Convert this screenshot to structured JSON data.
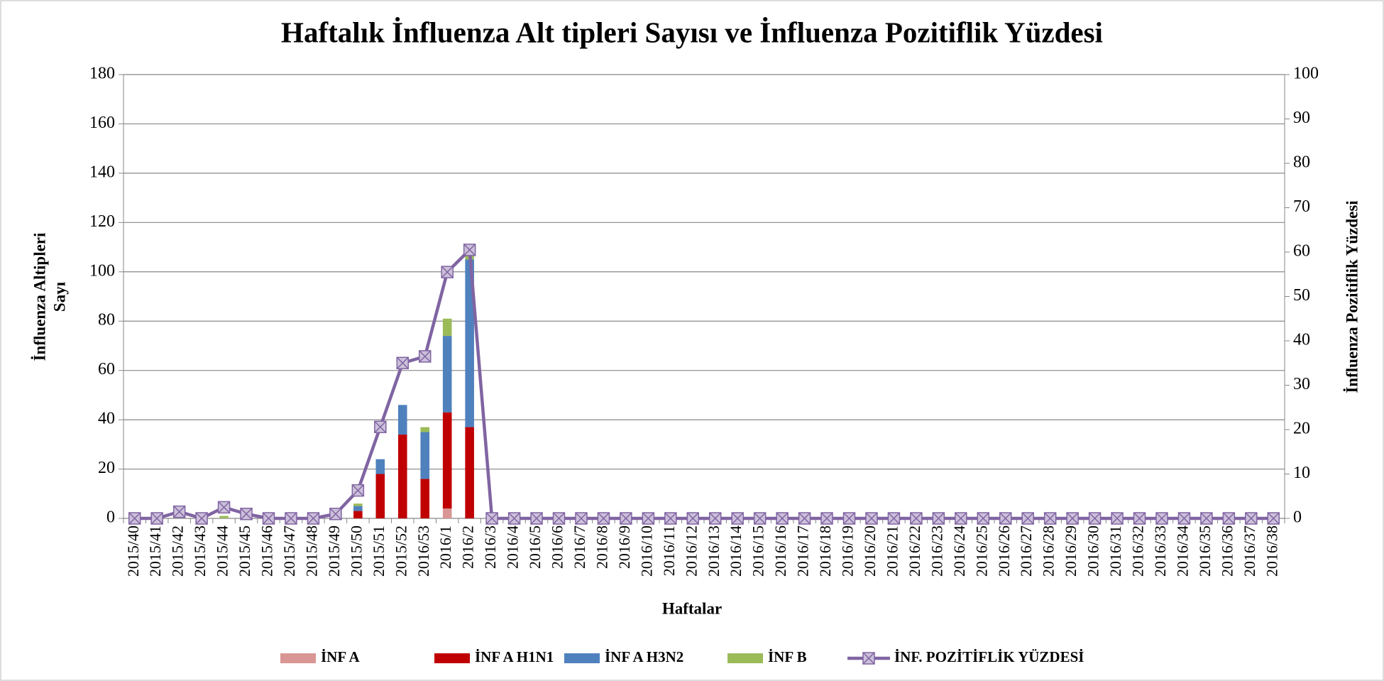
{
  "chart_data": {
    "type": "bar_line",
    "title": "Haftalık İnfluenza Alt tipleri Sayısı ve İnfluenza Pozitiflik Yüzdesi",
    "ylabel": [
      "İnfluenza Altipleri",
      "Sayı"
    ],
    "y2label": "İnfluenza Pozitiflik Yüzdesi",
    "xlabel": "Haftalar",
    "categories": [
      "2015/40",
      "2015/41",
      "2015/42",
      "2015/43",
      "2015/44",
      "2015/45",
      "2015/46",
      "2015/47",
      "2015/48",
      "2015/49",
      "2015/50",
      "2015/51",
      "2015/52",
      "2016/53",
      "2016/1",
      "2016/2",
      "2016/3",
      "2016/4",
      "2016/5",
      "2016/6",
      "2016/7",
      "2016/8",
      "2016/9",
      "2016/10",
      "2016/11",
      "2016/12",
      "2016/13",
      "2016/14",
      "2016/15",
      "2016/16",
      "2016/17",
      "2016/18",
      "2016/19",
      "2016/20",
      "2016/21",
      "2016/22",
      "2016/23",
      "2016/24",
      "2016/25",
      "2016/26",
      "2016/27",
      "2016/28",
      "2016/29",
      "2016/30",
      "2016/31",
      "2016/32",
      "2016/33",
      "2016/34",
      "2016/35",
      "2016/36",
      "2016/37",
      "2016/38"
    ],
    "series": [
      {
        "name": "İNF A",
        "color": "#d99694",
        "kind": "bar",
        "values": [
          0,
          0,
          0,
          0,
          0,
          0,
          0,
          0,
          0,
          0,
          0,
          0,
          0,
          0,
          4,
          0,
          0,
          0,
          0,
          0,
          0,
          0,
          0,
          0,
          0,
          0,
          0,
          0,
          0,
          0,
          0,
          0,
          0,
          0,
          0,
          0,
          0,
          0,
          0,
          0,
          0,
          0,
          0,
          0,
          0,
          0,
          0,
          0,
          0,
          0,
          0,
          0
        ]
      },
      {
        "name": "İNF A H1N1",
        "color": "#c00000",
        "kind": "bar",
        "values": [
          0,
          0,
          0,
          0,
          0,
          0,
          0,
          0,
          0,
          0,
          3,
          18,
          34,
          16,
          39,
          37,
          0,
          0,
          0,
          0,
          0,
          0,
          0,
          0,
          0,
          0,
          0,
          0,
          0,
          0,
          0,
          0,
          0,
          0,
          0,
          0,
          0,
          0,
          0,
          0,
          0,
          0,
          0,
          0,
          0,
          0,
          0,
          0,
          0,
          0,
          0,
          0
        ]
      },
      {
        "name": "İNF A H3N2",
        "color": "#4f81bd",
        "kind": "bar",
        "values": [
          0,
          0,
          0,
          0,
          0,
          0,
          0,
          0,
          0,
          0,
          2,
          6,
          12,
          19,
          31,
          68,
          0,
          0,
          0,
          0,
          0,
          0,
          0,
          0,
          0,
          0,
          0,
          0,
          0,
          0,
          0,
          0,
          0,
          0,
          0,
          0,
          0,
          0,
          0,
          0,
          0,
          0,
          0,
          0,
          0,
          0,
          0,
          0,
          0,
          0,
          0,
          0
        ]
      },
      {
        "name": "İNF B",
        "color": "#9bbb59",
        "kind": "bar",
        "values": [
          0,
          0,
          0,
          0,
          1,
          0,
          0,
          0,
          0,
          0,
          1,
          0,
          0,
          2,
          7,
          2,
          0,
          0,
          0,
          0,
          0,
          0,
          0,
          0,
          0,
          0,
          0,
          0,
          0,
          0,
          0,
          0,
          0,
          0,
          0,
          0,
          0,
          0,
          0,
          0,
          0,
          0,
          0,
          0,
          0,
          0,
          0,
          0,
          0,
          0,
          0,
          0
        ]
      },
      {
        "name": "İNF. POZİTİFLİK YÜZDESİ",
        "color": "#8064a2",
        "kind": "line",
        "axis": "y2",
        "values": [
          0,
          0,
          1.5,
          0,
          2.5,
          1,
          0,
          0,
          0,
          1,
          6.3,
          20.6,
          35,
          36.5,
          55.5,
          60.5,
          0,
          0,
          0,
          0,
          0,
          0,
          0,
          0,
          0,
          0,
          0,
          0,
          0,
          0,
          0,
          0,
          0,
          0,
          0,
          0,
          0,
          0,
          0,
          0,
          0,
          0,
          0,
          0,
          0,
          0,
          0,
          0,
          0,
          0,
          0,
          0
        ]
      }
    ],
    "ylim": [
      0,
      180
    ],
    "yticks": [
      0,
      20,
      40,
      60,
      80,
      100,
      120,
      140,
      160,
      180
    ],
    "y2lim": [
      0,
      100
    ],
    "y2ticks": [
      0,
      10,
      20,
      30,
      40,
      50,
      60,
      70,
      80,
      90,
      100
    ],
    "grid": true,
    "legend": "bottom"
  }
}
